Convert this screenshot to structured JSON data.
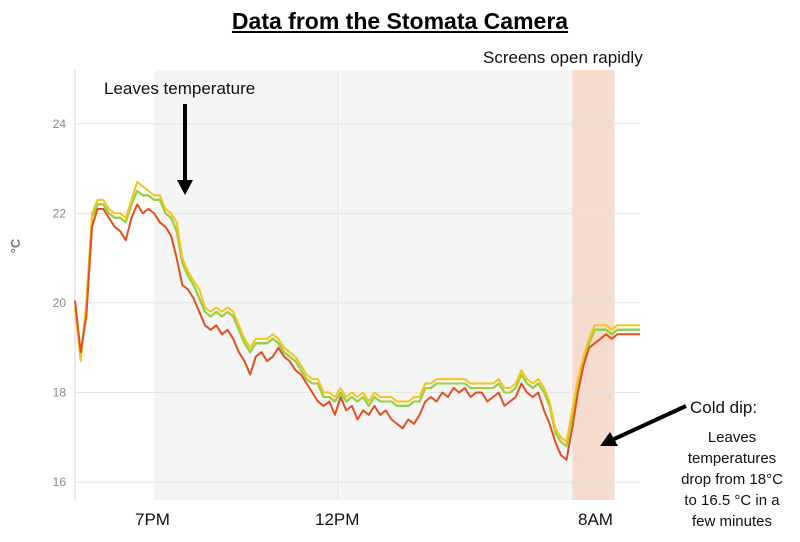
{
  "page_title": "Data from the Stomata Camera",
  "annotations": {
    "leaves_temp": "Leaves temperature",
    "screens_open": "Screens open rapidly",
    "cold_dip": "Cold dip:",
    "cold_dip_note": [
      "Leaves",
      "temperatures",
      "drop from 18°C",
      "to 16.5 °C in a",
      "few minutes"
    ]
  },
  "chart_data": {
    "type": "line",
    "title": "Data from the Stomata Camera",
    "ylabel": "°C",
    "xlabel": "",
    "ylim": [
      15.6,
      25.2
    ],
    "yticks": [
      16,
      18,
      20,
      22,
      24
    ],
    "xlim": [
      0,
      100
    ],
    "x_tick_labels": [
      {
        "x": 14.5,
        "label": "7PM"
      },
      {
        "x": 46.5,
        "label": "12PM"
      },
      {
        "x": 92.5,
        "label": "8AM"
      }
    ],
    "grid": true,
    "shaded_regions": [
      {
        "x0": 14,
        "x1": 47,
        "color": "#f5f5f5"
      },
      {
        "x0": 47,
        "x1": 88,
        "color": "#f5f5f5"
      },
      {
        "x0": 88,
        "x1": 95.5,
        "color": "#f6dccf"
      }
    ],
    "colors": [
      "#e1501e",
      "#f5c518",
      "#a0cf3c",
      "#55d070",
      "#5fe0e8",
      "#c0a0a0",
      "#8aa0a8"
    ],
    "base_x": [
      0,
      1,
      2,
      3,
      4,
      5,
      6,
      7,
      8,
      9,
      10,
      11,
      12,
      13,
      14,
      15,
      16,
      17,
      18,
      19,
      20,
      21,
      22,
      23,
      24,
      25,
      26,
      27,
      28,
      29,
      30,
      31,
      32,
      33,
      34,
      35,
      36,
      37,
      38,
      39,
      40,
      41,
      42,
      43,
      44,
      45,
      46,
      47,
      48,
      49,
      50,
      51,
      52,
      53,
      54,
      55,
      56,
      57,
      58,
      59,
      60,
      61,
      62,
      63,
      64,
      65,
      66,
      67,
      68,
      69,
      70,
      71,
      72,
      73,
      74,
      75,
      76,
      77,
      78,
      79,
      80,
      81,
      82,
      83,
      84,
      85,
      86,
      87,
      88,
      89,
      90,
      91,
      92,
      93,
      94,
      95,
      96,
      97,
      98,
      99,
      100
    ],
    "series": [
      {
        "values": [
          20.05,
          18.9,
          19.7,
          21.7,
          22.1,
          22.1,
          21.9,
          21.7,
          21.6,
          21.4,
          21.9,
          22.2,
          22.0,
          22.1,
          22.0,
          21.8,
          21.7,
          21.5,
          21.0,
          20.4,
          20.3,
          20.1,
          19.8,
          19.5,
          19.4,
          19.5,
          19.3,
          19.4,
          19.2,
          18.9,
          18.7,
          18.4,
          18.8,
          18.9,
          18.7,
          18.8,
          19.0,
          18.8,
          18.7,
          18.5,
          18.4,
          18.2,
          18.0,
          17.8,
          17.7,
          17.8,
          17.5,
          17.9,
          17.6,
          17.7,
          17.4,
          17.6,
          17.5,
          17.7,
          17.5,
          17.6,
          17.4,
          17.3,
          17.2,
          17.4,
          17.3,
          17.5,
          17.8,
          17.9,
          17.8,
          18.0,
          17.9,
          18.1,
          18.0,
          18.1,
          17.9,
          18.0,
          18.0,
          17.8,
          17.9,
          18.0,
          17.7,
          17.8,
          17.9,
          18.2,
          18.0,
          17.9,
          18.0,
          17.6,
          17.3,
          16.9,
          16.6,
          16.5,
          17.2,
          18.0,
          18.6,
          19.0,
          19.1,
          19.2,
          19.3,
          19.2,
          19.3,
          19.3,
          19.3,
          19.3,
          19.3
        ]
      },
      {
        "values": [
          19.9,
          18.7,
          20.0,
          22.0,
          22.3,
          22.3,
          22.1,
          22.0,
          22.0,
          21.9,
          22.3,
          22.7,
          22.6,
          22.5,
          22.4,
          22.4,
          22.1,
          22.0,
          21.8,
          21.0,
          20.7,
          20.5,
          20.3,
          19.9,
          19.8,
          19.9,
          19.8,
          19.9,
          19.8,
          19.5,
          19.2,
          19.0,
          19.2,
          19.2,
          19.2,
          19.3,
          19.2,
          19.0,
          18.9,
          18.8,
          18.6,
          18.4,
          18.3,
          18.3,
          18.0,
          18.0,
          17.9,
          18.1,
          17.9,
          18.0,
          17.9,
          18.0,
          17.8,
          18.0,
          17.9,
          17.9,
          17.9,
          17.8,
          17.8,
          17.8,
          17.9,
          17.9,
          18.2,
          18.2,
          18.3,
          18.3,
          18.3,
          18.3,
          18.3,
          18.3,
          18.2,
          18.2,
          18.2,
          18.2,
          18.2,
          18.3,
          18.1,
          18.1,
          18.2,
          18.5,
          18.3,
          18.2,
          18.3,
          18.1,
          17.8,
          17.2,
          17.0,
          16.9,
          17.6,
          18.3,
          18.8,
          19.2,
          19.5,
          19.5,
          19.5,
          19.4,
          19.5,
          19.5,
          19.5,
          19.5,
          19.5
        ]
      },
      {
        "values": [
          19.9,
          18.8,
          19.9,
          21.9,
          22.2,
          22.2,
          22.0,
          21.9,
          21.9,
          21.8,
          22.2,
          22.5,
          22.4,
          22.4,
          22.3,
          22.3,
          22.0,
          21.9,
          21.6,
          20.9,
          20.6,
          20.4,
          20.1,
          19.8,
          19.7,
          19.8,
          19.7,
          19.8,
          19.7,
          19.4,
          19.1,
          18.9,
          19.1,
          19.1,
          19.1,
          19.2,
          19.1,
          18.9,
          18.8,
          18.7,
          18.5,
          18.3,
          18.2,
          18.2,
          17.9,
          17.9,
          17.8,
          18.0,
          17.8,
          17.9,
          17.8,
          17.9,
          17.7,
          17.9,
          17.8,
          17.8,
          17.8,
          17.7,
          17.7,
          17.7,
          17.8,
          17.8,
          18.1,
          18.1,
          18.2,
          18.2,
          18.2,
          18.2,
          18.2,
          18.2,
          18.1,
          18.1,
          18.1,
          18.1,
          18.1,
          18.2,
          18.0,
          18.0,
          18.1,
          18.4,
          18.2,
          18.1,
          18.2,
          18.0,
          17.7,
          17.1,
          16.9,
          16.8,
          17.5,
          18.2,
          18.7,
          19.1,
          19.4,
          19.4,
          19.4,
          19.3,
          19.4,
          19.4,
          19.4,
          19.4,
          19.4
        ]
      },
      {
        "values": [
          19.9,
          18.8,
          19.9,
          21.9,
          22.2,
          22.2,
          22.0,
          21.9,
          21.9,
          21.8,
          22.2,
          22.5,
          22.4,
          22.4,
          22.3,
          22.3,
          22.0,
          21.9,
          21.6,
          20.9,
          20.6,
          20.4,
          20.1,
          19.8,
          19.7,
          19.8,
          19.7,
          19.8,
          19.7,
          19.4,
          19.1,
          18.9,
          19.1,
          19.1,
          19.1,
          19.2,
          19.1,
          18.9,
          18.8,
          18.7,
          18.5,
          18.3,
          18.2,
          18.2,
          17.9,
          17.9,
          17.8,
          18.0,
          17.8,
          17.9,
          17.8,
          17.9,
          17.7,
          17.9,
          17.8,
          17.8,
          17.8,
          17.7,
          17.7,
          17.7,
          17.8,
          17.8,
          18.1,
          18.1,
          18.2,
          18.2,
          18.2,
          18.2,
          18.2,
          18.2,
          18.1,
          18.1,
          18.1,
          18.1,
          18.1,
          18.2,
          18.0,
          18.0,
          18.1,
          18.4,
          18.2,
          18.1,
          18.2,
          18.0,
          17.7,
          17.1,
          16.9,
          16.8,
          17.5,
          18.2,
          18.7,
          19.1,
          19.4,
          19.4,
          19.4,
          19.3,
          19.4,
          19.4,
          19.4,
          19.4,
          19.4
        ]
      },
      {
        "values": [
          19.9,
          18.8,
          19.9,
          21.9,
          22.2,
          22.2,
          22.0,
          21.9,
          21.9,
          21.8,
          22.2,
          22.5,
          22.4,
          22.4,
          22.3,
          22.3,
          22.0,
          21.9,
          21.6,
          20.9,
          20.6,
          20.4,
          20.1,
          19.8,
          19.7,
          19.8,
          19.7,
          19.8,
          19.7,
          19.4,
          19.1,
          18.9,
          19.1,
          19.1,
          19.1,
          19.2,
          19.1,
          18.9,
          18.8,
          18.7,
          18.5,
          18.3,
          18.2,
          18.2,
          17.9,
          17.9,
          17.8,
          18.0,
          17.8,
          17.9,
          17.8,
          17.9,
          17.7,
          17.9,
          17.8,
          17.8,
          17.8,
          17.7,
          17.7,
          17.7,
          17.8,
          17.8,
          18.1,
          18.1,
          18.2,
          18.2,
          18.2,
          18.2,
          18.2,
          18.2,
          18.1,
          18.1,
          18.1,
          18.1,
          18.1,
          18.2,
          18.0,
          18.0,
          18.1,
          18.4,
          18.2,
          18.1,
          18.2,
          18.0,
          17.7,
          17.1,
          16.9,
          16.8,
          17.5,
          18.2,
          18.7,
          19.1,
          19.4,
          19.4,
          19.4,
          19.3,
          19.4,
          19.4,
          19.4,
          19.4,
          19.4
        ]
      },
      {
        "values": [
          19.9,
          18.8,
          19.9,
          21.9,
          22.2,
          22.2,
          22.0,
          21.9,
          21.9,
          21.8,
          22.2,
          22.5,
          22.4,
          22.4,
          22.3,
          22.3,
          22.0,
          21.9,
          21.6,
          20.9,
          20.6,
          20.4,
          20.1,
          19.8,
          19.7,
          19.8,
          19.7,
          19.8,
          19.7,
          19.4,
          19.1,
          18.9,
          19.1,
          19.1,
          19.1,
          19.2,
          19.1,
          18.9,
          18.8,
          18.7,
          18.5,
          18.3,
          18.2,
          18.2,
          17.9,
          17.9,
          17.8,
          18.0,
          17.8,
          17.9,
          17.8,
          17.9,
          17.7,
          17.9,
          17.8,
          17.8,
          17.8,
          17.7,
          17.7,
          17.7,
          17.8,
          17.8,
          18.1,
          18.1,
          18.2,
          18.2,
          18.2,
          18.2,
          18.2,
          18.2,
          18.1,
          18.1,
          18.1,
          18.1,
          18.1,
          18.2,
          18.0,
          18.0,
          18.1,
          18.4,
          18.2,
          18.1,
          18.2,
          18.0,
          17.7,
          17.1,
          16.9,
          16.8,
          17.5,
          18.2,
          18.7,
          19.1,
          19.4,
          19.4,
          19.4,
          19.3,
          19.4,
          19.4,
          19.4,
          19.4,
          19.4
        ]
      },
      {
        "values": [
          19.9,
          18.8,
          19.9,
          21.9,
          22.2,
          22.2,
          22.0,
          21.9,
          21.9,
          21.8,
          22.2,
          22.5,
          22.4,
          22.4,
          22.3,
          22.3,
          22.0,
          21.9,
          21.6,
          20.9,
          20.6,
          20.4,
          20.1,
          19.8,
          19.7,
          19.8,
          19.7,
          19.8,
          19.7,
          19.4,
          19.1,
          18.9,
          19.1,
          19.1,
          19.1,
          19.2,
          19.1,
          18.9,
          18.8,
          18.7,
          18.5,
          18.3,
          18.2,
          18.2,
          17.9,
          17.9,
          17.8,
          18.0,
          17.8,
          17.9,
          17.8,
          17.9,
          17.7,
          17.9,
          17.8,
          17.8,
          17.8,
          17.7,
          17.7,
          17.7,
          17.8,
          17.8,
          18.1,
          18.1,
          18.2,
          18.2,
          18.2,
          18.2,
          18.2,
          18.2,
          18.1,
          18.1,
          18.1,
          18.1,
          18.1,
          18.2,
          18.0,
          18.0,
          18.1,
          18.4,
          18.2,
          18.1,
          18.2,
          18.0,
          17.7,
          17.1,
          16.9,
          16.8,
          17.5,
          18.2,
          18.7,
          19.1,
          19.4,
          19.4,
          19.4,
          19.3,
          19.4,
          19.4,
          19.4,
          19.4,
          19.4
        ]
      }
    ]
  }
}
